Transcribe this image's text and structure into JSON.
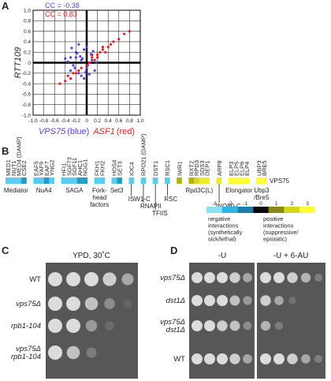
{
  "panel_labels": [
    "A",
    "B",
    "C",
    "D"
  ],
  "chart_data": {
    "type": "scatter",
    "ylabel": "RTT109",
    "annotations": [
      "CC = -0.38",
      "CC = 0.83"
    ],
    "xlabel_parts": [
      "(blue)",
      "(red)"
    ],
    "xlim": [
      -1,
      1
    ],
    "ylim": [
      -1,
      1
    ],
    "xticks": [
      {
        "value": -1,
        "label": "-1.0"
      },
      -0.8,
      -0.6,
      -0.4,
      -0.2,
      0,
      0.2,
      0.4,
      0.6,
      0.8,
      {
        "value": 1,
        "label": "1.0"
      }
    ],
    "yticks": [
      {
        "value": -1,
        "label": "-1.0"
      },
      -0.8,
      -0.6,
      -0.4,
      -0.2,
      0,
      0.2,
      0.4,
      0.6,
      0.8,
      {
        "value": 1,
        "label": "1.0"
      }
    ],
    "grid": true,
    "series": [
      {
        "name": "VPS75",
        "color": "#5a3fd0",
        "x": [
          -0.3,
          -0.2,
          -0.1,
          0,
          0.1,
          -0.25,
          -0.15,
          -0.05,
          0.05,
          0.15,
          -0.35,
          -0.2,
          -0.1,
          0.0,
          0.1,
          -0.3,
          -0.18,
          -0.08,
          0.02,
          0.12,
          -0.22,
          -0.12,
          -0.02,
          0.08,
          -0.4,
          -0.28,
          0.18,
          -0.15,
          -0.05,
          0.05
        ],
        "values": [
          0.1,
          0.2,
          0.05,
          -0.1,
          0.15,
          -0.05,
          -0.2,
          0.25,
          0.0,
          -0.15,
          0.02,
          0.1,
          -0.25,
          0.3,
          0.05,
          -0.15,
          0.18,
          0.08,
          -0.05,
          0.22,
          -0.1,
          0.12,
          -0.18,
          0.16,
          0.08,
          0.28,
          0.0,
          0.35,
          -0.3,
          -0.22
        ]
      },
      {
        "name": "ASF1",
        "color": "#e02020",
        "x": [
          -0.5,
          -0.4,
          -0.3,
          -0.2,
          -0.1,
          0,
          0.1,
          0.2,
          0.3,
          0.4,
          0.5,
          0.6,
          0.7,
          0.8,
          -0.35,
          -0.15,
          0.05,
          0.25,
          0.45,
          0.15,
          0.35,
          -0.25,
          0.1,
          0.2,
          0.3
        ],
        "values": [
          -0.4,
          -0.35,
          -0.3,
          -0.2,
          -0.1,
          -0.05,
          0.1,
          0.15,
          0.25,
          0.3,
          0.4,
          0.45,
          0.55,
          0.6,
          -0.25,
          -0.15,
          0.0,
          0.2,
          0.35,
          0.05,
          0.2,
          -0.2,
          0.15,
          0.1,
          0.3
        ]
      }
    ]
  },
  "interaction_map": {
    "row_label": "VPS75",
    "groups": [
      {
        "label": [
          "Mediator"
        ],
        "genes": [
          "MED1",
          "NUT1",
          "MED4 (DAMP)",
          "CSE2"
        ],
        "values": [
          -2.5,
          -2.5,
          -2.5,
          -1.5
        ]
      },
      {
        "label": [
          "NuA4"
        ],
        "genes": [
          "EAF5",
          "YAF9",
          "EAF7",
          "YNG2"
        ],
        "values": [
          -2.5,
          -2.5,
          -1.5,
          -2.5
        ]
      },
      {
        "label": [
          "SAGA"
        ],
        "genes": [
          "HFI1",
          "SGF73",
          "SGF11",
          "AHC1",
          "NGG1"
        ],
        "values": [
          -2.5,
          -2.5,
          -2.5,
          -1.5,
          -1.5
        ]
      },
      {
        "label": [
          "Fork-",
          "head",
          "factors"
        ],
        "genes": [
          "FKH1",
          "FKH2"
        ],
        "values": [
          -2.5,
          -2.5
        ]
      },
      {
        "label": [
          "Set3"
        ],
        "genes": [
          "HOS4",
          "SET3"
        ],
        "values": [
          -2.5,
          -1.5
        ]
      },
      {
        "label": [
          "ISW1-C"
        ],
        "genes": [
          "IOC4"
        ],
        "values": [
          -2.5
        ]
      },
      {
        "label": [
          "RNAPII"
        ],
        "genes": [
          "RPO21 (DAMP)"
        ],
        "values": [
          -2.5
        ]
      },
      {
        "label": [
          "TFIIS"
        ],
        "genes": [
          "DST1"
        ],
        "values": [
          -2.5
        ]
      },
      {
        "label": [
          "RSC"
        ],
        "genes": [
          "RSC1"
        ],
        "values": [
          -2.5
        ]
      },
      {
        "label": null,
        "genes": [
          "IWR1"
        ],
        "values": [
          1.5
        ]
      },
      {
        "label": [
          "Rpd3C(L)"
        ],
        "genes": [
          "RXT2",
          "RPD3",
          "SDS3",
          "DEP1"
        ],
        "values": [
          1.5,
          2,
          2.5,
          2.5
        ]
      },
      {
        "label": [
          "INO80-C"
        ],
        "genes": [
          "ARP8"
        ],
        "values": [
          2.5
        ]
      },
      {
        "label": [
          "Elongator"
        ],
        "genes": [
          "ELP3",
          "ELP5",
          "ELP6",
          "ELP4"
        ],
        "values": [
          3,
          3,
          3,
          3
        ]
      },
      {
        "label": [
          "Ubp3",
          "/Bre5"
        ],
        "genes": [
          "UBP3",
          "BRE5"
        ],
        "values": [
          3,
          3
        ]
      }
    ],
    "colorbar": {
      "ticks": [
        -3,
        -2,
        -1,
        0,
        1,
        2,
        3
      ],
      "colors": [
        "#8fdcf5",
        "#2bb7e6",
        "#1b7fa6",
        "#0a0a0a",
        "#8a8a12",
        "#d6d61e",
        "#ffff33"
      ],
      "negative_label": [
        "negative",
        "interactions",
        "(synthetically",
        "sick/lethal)"
      ],
      "positive_label": [
        "positive",
        "interactions",
        "(suppressive/",
        "epistatic)"
      ]
    }
  },
  "panel_c": {
    "title": "YPD, 30˚C",
    "strains": [
      [
        "WT"
      ],
      [
        "vps75Δ"
      ],
      [
        "rpb1-104"
      ],
      [
        "vps75Δ",
        "rpb1-104"
      ]
    ]
  },
  "panel_d": {
    "conditions": [
      "-U",
      "-U + 6-AU"
    ],
    "strains": [
      [
        "vps75Δ"
      ],
      [
        "dst1Δ"
      ],
      [
        "vps75Δ",
        "dst1Δ"
      ],
      [
        "WT"
      ]
    ]
  }
}
